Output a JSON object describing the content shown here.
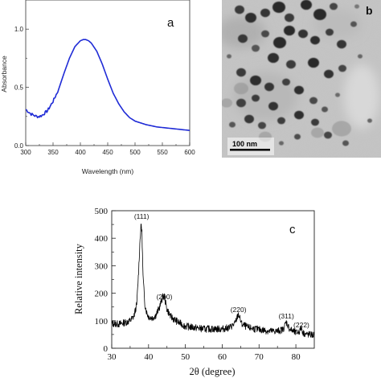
{
  "colors": {
    "uv_line": "#1f2bd6",
    "xrd_line": "#000000"
  },
  "panel_a": {
    "letter": "a",
    "xlabel": "Wavelength (nm)",
    "ylabel": "Absorbance",
    "xticks": [
      "300",
      "350",
      "400",
      "450",
      "500",
      "550",
      "600"
    ],
    "yticks": [
      "0.0",
      "0.5",
      "1.0"
    ]
  },
  "panel_b": {
    "letter": "b",
    "scale_bar_label": "100 nm"
  },
  "panel_c": {
    "letter": "c",
    "xlabel": "2θ (degree)",
    "ylabel": "Relative intensity",
    "xticks": [
      "30",
      "40",
      "50",
      "60",
      "70",
      "80"
    ],
    "yticks": [
      "0",
      "100",
      "200",
      "300",
      "400",
      "500"
    ],
    "peaks": [
      {
        "label": "(111)",
        "x": 38.1
      },
      {
        "label": "(200)",
        "x": 44.3
      },
      {
        "label": "(220)",
        "x": 64.4
      },
      {
        "label": "(311)",
        "x": 77.4
      },
      {
        "label": "(222)",
        "x": 81.5
      }
    ]
  },
  "chart_data": [
    {
      "type": "line",
      "xlabel": "Wavelength (nm)",
      "ylabel": "Absorbance",
      "xlim": [
        300,
        600
      ],
      "ylim": [
        0.0,
        1.25
      ],
      "series": [
        {
          "x": [
            300,
            305,
            310,
            315,
            320,
            325,
            330,
            340,
            350,
            360,
            370,
            380,
            390,
            400,
            405,
            410,
            415,
            420,
            430,
            440,
            450,
            460,
            470,
            480,
            490,
            500,
            520,
            540,
            560,
            580,
            600
          ],
          "values": [
            0.31,
            0.29,
            0.27,
            0.26,
            0.25,
            0.25,
            0.26,
            0.3,
            0.38,
            0.48,
            0.62,
            0.75,
            0.85,
            0.9,
            0.91,
            0.91,
            0.9,
            0.88,
            0.81,
            0.7,
            0.57,
            0.45,
            0.36,
            0.29,
            0.24,
            0.21,
            0.18,
            0.16,
            0.15,
            0.14,
            0.13
          ]
        }
      ]
    },
    {
      "type": "line",
      "xlabel": "2θ (degree)",
      "ylabel": "Relative intensity",
      "xlim": [
        30,
        85
      ],
      "ylim": [
        0,
        500
      ],
      "series": [
        {
          "x": [
            30,
            32,
            34,
            35,
            36,
            36.8,
            37.3,
            37.7,
            38.0,
            38.2,
            38.5,
            39.0,
            39.5,
            40,
            41,
            42,
            43,
            43.8,
            44.3,
            44.9,
            46,
            48,
            50,
            55,
            60,
            62,
            63.5,
            64.4,
            65.3,
            67,
            70,
            73,
            75,
            76.5,
            77.4,
            78.3,
            80,
            81.0,
            81.5,
            82.0,
            83,
            85
          ],
          "values": [
            90,
            88,
            95,
            100,
            115,
            160,
            280,
            400,
            450,
            420,
            260,
            160,
            130,
            115,
            110,
            120,
            150,
            185,
            190,
            145,
            115,
            95,
            80,
            70,
            70,
            75,
            90,
            125,
            88,
            75,
            68,
            62,
            62,
            68,
            95,
            70,
            55,
            62,
            75,
            55,
            50,
            48
          ]
        }
      ]
    }
  ]
}
